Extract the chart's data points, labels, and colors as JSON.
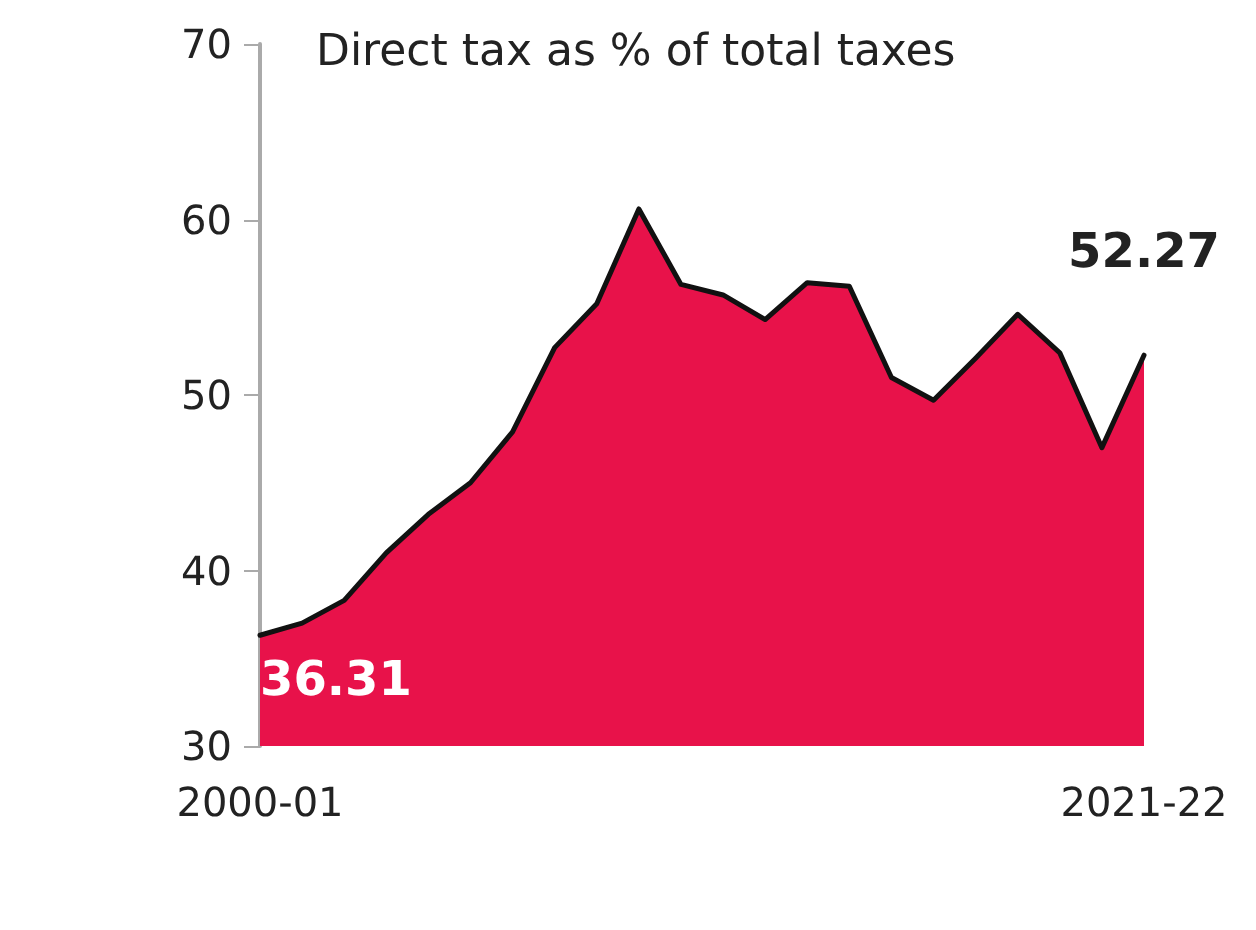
{
  "chart_data": {
    "type": "area",
    "title": "Direct tax as % of total taxes",
    "categories": [
      "2000-01",
      null,
      null,
      null,
      null,
      null,
      null,
      null,
      null,
      null,
      null,
      null,
      null,
      null,
      null,
      null,
      null,
      null,
      null,
      null,
      null,
      "2021-22"
    ],
    "series": [
      {
        "color": "#e8124a",
        "values": [
          36.31,
          37.0,
          38.3,
          41.0,
          43.2,
          45.0,
          47.9,
          52.7,
          55.2,
          60.6,
          56.3,
          55.7,
          54.3,
          56.4,
          56.2,
          51.0,
          49.7,
          52.1,
          54.6,
          52.4,
          47.0,
          52.27
        ],
        "value_labels": [
          "36.31",
          null,
          null,
          null,
          null,
          null,
          null,
          null,
          null,
          null,
          null,
          null,
          null,
          null,
          null,
          null,
          null,
          null,
          null,
          null,
          null,
          "52.27"
        ]
      }
    ],
    "ylim": [
      30,
      70
    ],
    "yticks": [
      30,
      40,
      50,
      60,
      70
    ],
    "grid": false,
    "marker": "none",
    "line_style": "solid"
  }
}
